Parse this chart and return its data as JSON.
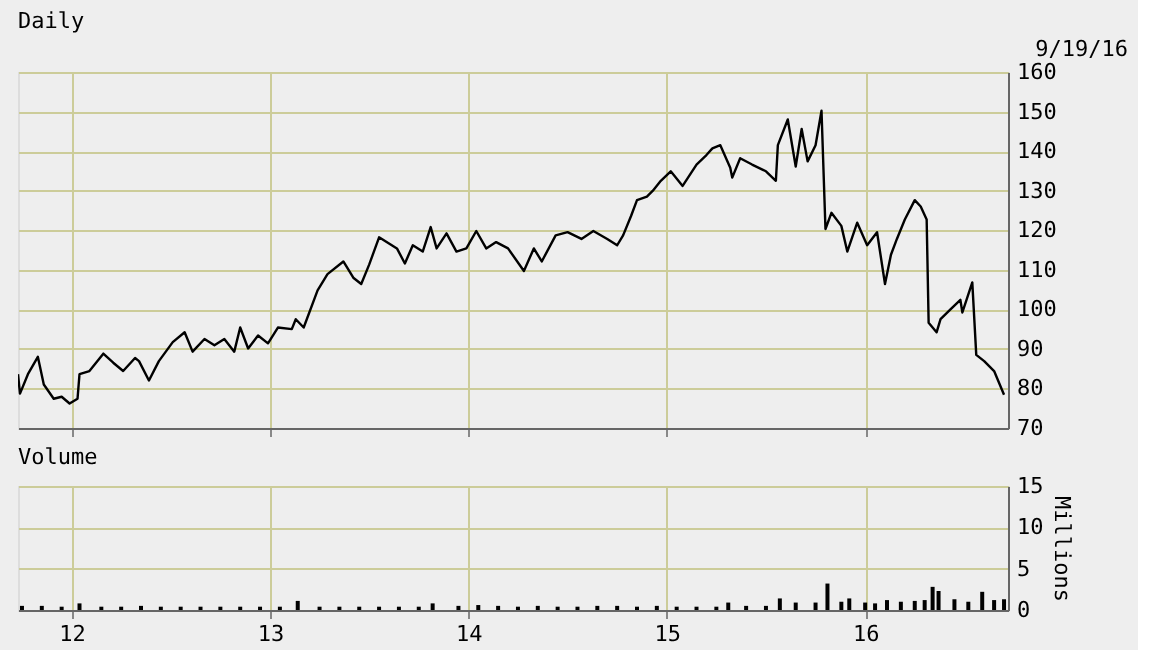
{
  "chart_data": [
    {
      "type": "line",
      "title": "Daily",
      "annotations": [
        "9/19/16"
      ],
      "x": [
        2011.73,
        2011.74,
        2011.78,
        2011.83,
        2011.86,
        2011.91,
        2011.95,
        2011.99,
        2012.03,
        2012.04,
        2012.09,
        2012.16,
        2012.21,
        2012.26,
        2012.32,
        2012.34,
        2012.39,
        2012.44,
        2012.51,
        2012.57,
        2012.61,
        2012.67,
        2012.72,
        2012.77,
        2012.82,
        2012.85,
        2012.89,
        2012.94,
        2012.99,
        2013.04,
        2013.11,
        2013.13,
        2013.17,
        2013.24,
        2013.29,
        2013.37,
        2013.42,
        2013.46,
        2013.5,
        2013.55,
        2013.64,
        2013.68,
        2013.72,
        2013.77,
        2013.81,
        2013.84,
        2013.89,
        2013.94,
        2013.99,
        2014.04,
        2014.09,
        2014.14,
        2014.2,
        2014.28,
        2014.33,
        2014.37,
        2014.44,
        2014.5,
        2014.57,
        2014.63,
        2014.7,
        2014.75,
        2014.78,
        2014.82,
        2014.85,
        2014.9,
        2014.93,
        2014.97,
        2015.02,
        2015.08,
        2015.15,
        2015.2,
        2015.23,
        2015.27,
        2015.32,
        2015.33,
        2015.37,
        2015.43,
        2015.5,
        2015.55,
        2015.56,
        2015.61,
        2015.65,
        2015.68,
        2015.71,
        2015.75,
        2015.78,
        2015.8,
        2015.83,
        2015.88,
        2015.91,
        2015.96,
        2016.01,
        2016.06,
        2016.1,
        2016.13,
        2016.16,
        2016.2,
        2016.25,
        2016.28,
        2016.31,
        2016.32,
        2016.36,
        2016.38,
        2016.43,
        2016.48,
        2016.49,
        2016.54,
        2016.56,
        2016.6,
        2016.65,
        2016.7
      ],
      "series": [
        {
          "color": "#000000",
          "values": [
            83.6,
            78.7,
            83.6,
            88,
            81,
            77.4,
            77.9,
            76.2,
            77.4,
            83.6,
            84.4,
            88.8,
            86.5,
            84.4,
            87.7,
            86.9,
            82,
            86.9,
            91.7,
            94.2,
            89.3,
            92.5,
            90.9,
            92.5,
            89.3,
            95.4,
            90.1,
            93.4,
            91.4,
            95.4,
            95,
            97.5,
            95.4,
            104.8,
            108.9,
            112.1,
            108,
            106.4,
            111.3,
            118.2,
            115.4,
            111.6,
            116.2,
            114.6,
            120.8,
            115.4,
            119.2,
            114.6,
            115.4,
            119.8,
            115.4,
            117,
            115.4,
            109.7,
            115.4,
            112.1,
            118.7,
            119.5,
            117.8,
            119.8,
            117.8,
            116.2,
            118.7,
            123.6,
            127.6,
            128.5,
            130,
            132.5,
            134.9,
            131.2,
            136.6,
            139,
            140.7,
            141.5,
            135.8,
            133.3,
            138.2,
            136.6,
            134.9,
            132.5,
            141.5,
            148,
            136.1,
            145.6,
            137.4,
            141.5,
            150.2,
            120.3,
            124.4,
            121.1,
            114.6,
            121.9,
            116.2,
            119.5,
            106.4,
            113.8,
            117.8,
            122.7,
            127.6,
            126,
            122.7,
            96.6,
            94.2,
            97.5,
            100,
            102.4,
            99.2,
            106.8,
            88.5,
            86.9,
            84.4,
            78.4
          ]
        }
      ],
      "xlim": [
        2011.73,
        2016.72
      ],
      "xticks": [
        {
          "value": 2012,
          "label": null
        },
        {
          "value": 2013,
          "label": null
        },
        {
          "value": 2014,
          "label": null
        },
        {
          "value": 2015,
          "label": null
        },
        {
          "value": 2016,
          "label": null
        }
      ],
      "ylim": [
        70,
        160
      ],
      "yticks": [
        70,
        80,
        90,
        100,
        110,
        120,
        130,
        140,
        150,
        160
      ],
      "grid": true,
      "tick_labels": "y"
    },
    {
      "type": "bar",
      "title": "Volume",
      "ylabel": "Millions",
      "x": [
        2011.75,
        2011.85,
        2011.95,
        2012.04,
        2012.15,
        2012.25,
        2012.35,
        2012.45,
        2012.55,
        2012.65,
        2012.75,
        2012.85,
        2012.95,
        2013.05,
        2013.14,
        2013.25,
        2013.35,
        2013.45,
        2013.55,
        2013.65,
        2013.75,
        2013.82,
        2013.95,
        2014.05,
        2014.15,
        2014.25,
        2014.35,
        2014.45,
        2014.55,
        2014.65,
        2014.75,
        2014.85,
        2014.95,
        2015.05,
        2015.15,
        2015.25,
        2015.31,
        2015.4,
        2015.5,
        2015.57,
        2015.65,
        2015.75,
        2015.81,
        2015.88,
        2015.92,
        2016.0,
        2016.05,
        2016.11,
        2016.18,
        2016.25,
        2016.3,
        2016.34,
        2016.37,
        2016.45,
        2016.52,
        2016.59,
        2016.65,
        2016.7
      ],
      "series": [
        {
          "color": "#000000",
          "values": [
            0.5,
            0.5,
            0.4,
            0.8,
            0.4,
            0.4,
            0.5,
            0.4,
            0.4,
            0.4,
            0.4,
            0.4,
            0.4,
            0.4,
            1.1,
            0.4,
            0.4,
            0.4,
            0.4,
            0.4,
            0.4,
            0.8,
            0.5,
            0.6,
            0.5,
            0.4,
            0.5,
            0.4,
            0.4,
            0.5,
            0.5,
            0.4,
            0.5,
            0.4,
            0.4,
            0.4,
            0.9,
            0.5,
            0.5,
            1.4,
            0.9,
            0.9,
            3.2,
            1.0,
            1.4,
            0.9,
            0.8,
            1.2,
            1.0,
            1.1,
            1.2,
            2.8,
            2.3,
            1.3,
            1.0,
            2.2,
            1.2,
            1.3
          ]
        }
      ],
      "xlim": [
        2011.73,
        2016.72
      ],
      "xticks": [
        {
          "value": 2012,
          "label": "12"
        },
        {
          "value": 2013,
          "label": "13"
        },
        {
          "value": 2014,
          "label": "14"
        },
        {
          "value": 2015,
          "label": "15"
        },
        {
          "value": 2016,
          "label": "16"
        }
      ],
      "ylim": [
        0,
        15
      ],
      "yticks": [
        0,
        5,
        10,
        15
      ],
      "grid": true
    }
  ]
}
